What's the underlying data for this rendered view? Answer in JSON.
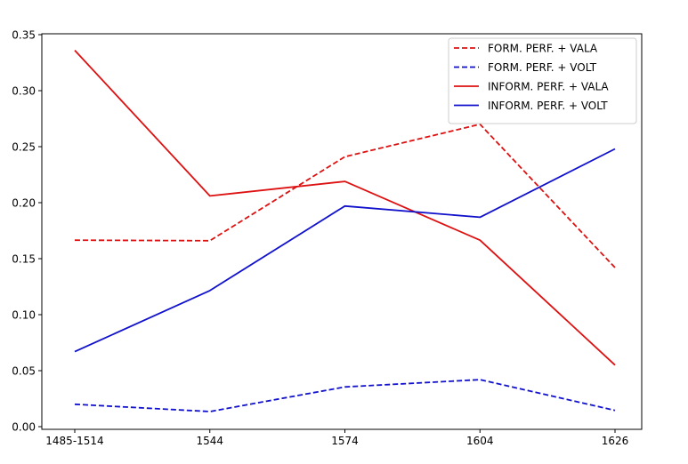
{
  "chart_data": {
    "type": "line",
    "title": "",
    "xlabel": "",
    "ylabel": "",
    "categories": [
      "1485-1514",
      "1544",
      "1574",
      "1604",
      "1626"
    ],
    "ylim": [
      0,
      0.35
    ],
    "yticks": [
      0.0,
      0.05,
      0.1,
      0.15,
      0.2,
      0.25,
      0.3,
      0.35
    ],
    "ytick_labels": [
      "0.00",
      "0.05",
      "0.10",
      "0.15",
      "0.20",
      "0.25",
      "0.30",
      "0.35"
    ],
    "grid": false,
    "legend_position": "top-right",
    "series": [
      {
        "name": "FORM. PERF. + VALA",
        "color": "#dd1111",
        "linestyle": "dashed",
        "values": [
          0.1665,
          0.166,
          0.241,
          0.27,
          0.142
        ]
      },
      {
        "name": "FORM. PERF. + VOLT",
        "color": "#1111cc",
        "linestyle": "dashed",
        "values": [
          0.02,
          0.0135,
          0.0355,
          0.042,
          0.0145
        ]
      },
      {
        "name": "INFORM. PERF. + VALA",
        "color": "#dd1111",
        "linestyle": "solid",
        "values": [
          0.336,
          0.206,
          0.219,
          0.1665,
          0.055
        ]
      },
      {
        "name": "INFORM. PERF. + VOLT",
        "color": "#1111cc",
        "linestyle": "solid",
        "values": [
          0.067,
          0.1215,
          0.197,
          0.187,
          0.248
        ]
      }
    ]
  }
}
